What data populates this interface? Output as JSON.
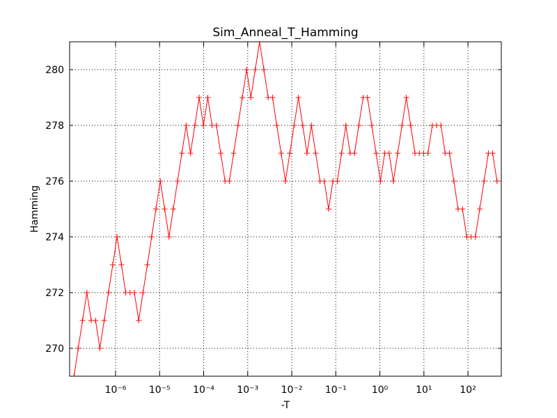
{
  "chart_data": {
    "type": "line",
    "title": "Sim_Anneal_T_Hamming",
    "x_label": "-T",
    "y_label": "Hamming",
    "log_x": true,
    "grid": true,
    "marker": "+",
    "xlim": [
      9.06e-08,
      571.5
    ],
    "ylim": [
      269,
      281
    ],
    "xticks": [
      {
        "value": 1e-06,
        "label": "10⁻⁶"
      },
      {
        "value": 1e-05,
        "label": "10⁻⁵"
      },
      {
        "value": 0.0001,
        "label": "10⁻⁴"
      },
      {
        "value": 0.001,
        "label": "10⁻³"
      },
      {
        "value": 0.01,
        "label": "10⁻²"
      },
      {
        "value": 0.1,
        "label": "10⁻¹"
      },
      {
        "value": 1,
        "label": "10⁰"
      },
      {
        "value": 10,
        "label": "10¹"
      },
      {
        "value": 100,
        "label": "10²"
      }
    ],
    "yticks": [
      270,
      272,
      274,
      276,
      278,
      280
    ],
    "x": [
      9.06e-08,
      1.14e-07,
      1.42e-07,
      1.78e-07,
      2.23e-07,
      2.8e-07,
      3.51e-07,
      4.4e-07,
      5.51e-07,
      6.9e-07,
      8.65e-07,
      1.08e-06,
      1.36e-06,
      1.7e-06,
      2.13e-06,
      2.67e-06,
      3.35e-06,
      4.2e-06,
      5.26e-06,
      6.59e-06,
      8.26e-06,
      1.035e-05,
      1.3e-05,
      1.63e-05,
      2.04e-05,
      2.55e-05,
      3.2e-05,
      4.01e-05,
      5.02e-05,
      6.3e-05,
      7.89e-05,
      9.89e-05,
      0.000124,
      0.000155,
      0.000195,
      0.000244,
      0.000306,
      0.000383,
      0.00048,
      0.000601,
      0.000753,
      0.000944,
      0.00118,
      0.00148,
      0.00186,
      0.00233,
      0.00292,
      0.00366,
      0.00458,
      0.00574,
      0.00719,
      0.00902,
      0.0113,
      0.0142,
      0.0177,
      0.0222,
      0.0279,
      0.0349,
      0.0438,
      0.0548,
      0.0687,
      0.0861,
      0.108,
      0.135,
      0.169,
      0.212,
      0.266,
      0.333,
      0.418,
      0.524,
      0.656,
      0.822,
      1.03,
      1.29,
      1.62,
      2.03,
      2.54,
      3.18,
      3.99,
      5.0,
      6.27,
      7.85,
      9.84,
      12.3,
      15.5,
      19.4,
      24.3,
      30.4,
      38.1,
      47.8,
      59.8,
      75.0,
      94.0,
      117.8,
      147.6,
      184.9,
      231.7,
      290.4,
      363.9,
      456.0,
      571.5
    ],
    "series": [
      {
        "name": "Hamming",
        "color": "#ff0000",
        "values": [
          269,
          269,
          270,
          271,
          272,
          271,
          271,
          270,
          271,
          272,
          273,
          274,
          273,
          272,
          272,
          272,
          271,
          272,
          273,
          274,
          275,
          276,
          275,
          274,
          275,
          276,
          277,
          278,
          277,
          278,
          279,
          278,
          279,
          278,
          278,
          277,
          276,
          276,
          277,
          278,
          279,
          280,
          279,
          280,
          281,
          280,
          279,
          279,
          278,
          277,
          276,
          277,
          278,
          279,
          278,
          277,
          278,
          277,
          276,
          276,
          275,
          276,
          276,
          277,
          278,
          277,
          277,
          278,
          279,
          279,
          278,
          277,
          276,
          277,
          277,
          276,
          277,
          278,
          279,
          278,
          277,
          277,
          277,
          277,
          278,
          278,
          278,
          277,
          277,
          276,
          275,
          275,
          274,
          274,
          274,
          275,
          276,
          277,
          277,
          276,
          276
        ]
      }
    ]
  }
}
